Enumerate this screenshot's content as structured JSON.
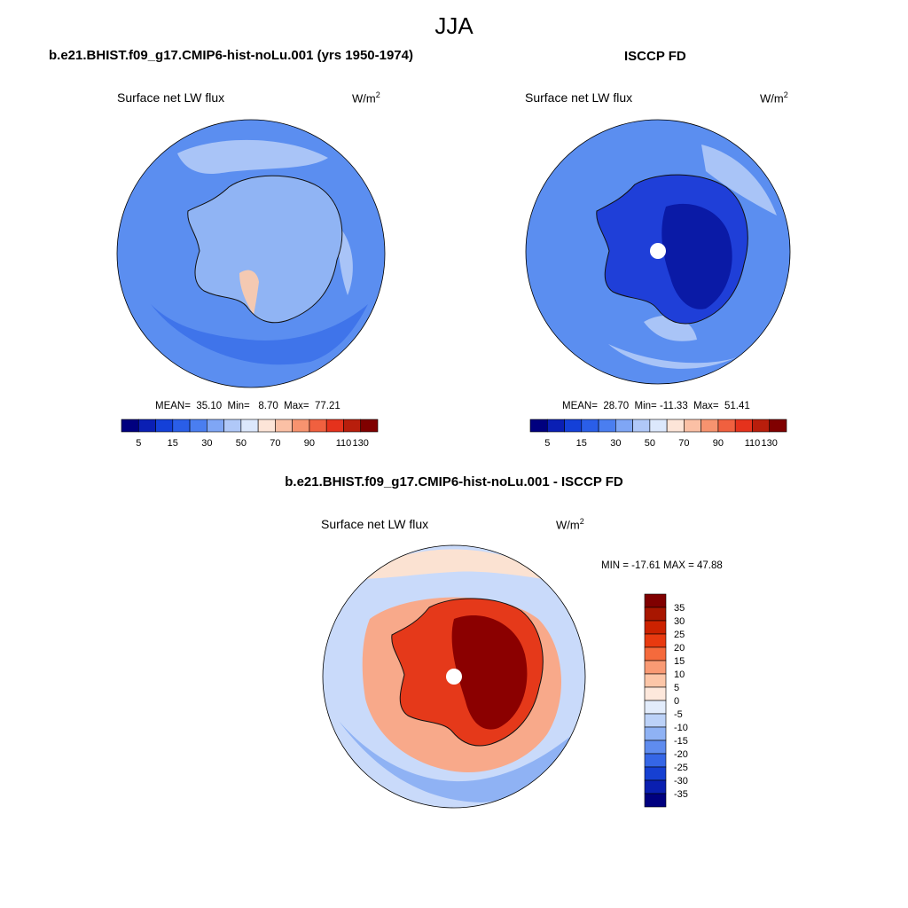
{
  "figure": {
    "season": "JJA"
  },
  "panels": [
    {
      "title": "b.e21.BHIST.f09_g17.CMIP6-hist-noLu.001 (yrs 1950-1974)",
      "variable": "Surface net LW flux",
      "units_base": "W/m",
      "units_exp": "2",
      "mean_label": "MEAN=",
      "mean": "35.10",
      "min_label": "Min=",
      "min": "8.70",
      "max_label": "Max=",
      "max": "77.21"
    },
    {
      "title": "ISCCP FD",
      "variable": "Surface net LW flux",
      "units_base": "W/m",
      "units_exp": "2",
      "mean_label": "MEAN=",
      "mean": "28.70",
      "min_label": "Min=",
      "min": "-11.33",
      "max_label": "Max=",
      "max": "51.41"
    },
    {
      "title": "b.e21.BHIST.f09_g17.CMIP6-hist-noLu.001 - ISCCP FD",
      "variable": "Surface net LW flux",
      "units_base": "W/m",
      "units_exp": "2",
      "minmax_text": "MIN = -17.61 MAX =  47.88"
    }
  ],
  "colorbar_abs": {
    "tick_labels": [
      "5",
      "15",
      "30",
      "50",
      "70",
      "90",
      "110",
      "130"
    ],
    "colors": [
      "#00007f",
      "#0a1fb4",
      "#1440d8",
      "#2a5ee8",
      "#4a7ef0",
      "#7fa6f5",
      "#b0c8f8",
      "#dce8fc",
      "#fde5d8",
      "#fbc0a5",
      "#f7936f",
      "#f0603f",
      "#e5321c",
      "#b81e0c",
      "#800000"
    ]
  },
  "colorbar_diff": {
    "tick_labels": [
      "35",
      "30",
      "25",
      "20",
      "15",
      "10",
      "5",
      "0",
      "-5",
      "-10",
      "-15",
      "-20",
      "-25",
      "-30",
      "-35"
    ],
    "colors": [
      "#800000",
      "#a81600",
      "#cc2200",
      "#e83a10",
      "#f56a3c",
      "#f99a74",
      "#fcc6a8",
      "#fde8dc",
      "#e2ecfb",
      "#bcd2f8",
      "#8fb2f4",
      "#5f8cef",
      "#3566e6",
      "#1640d2",
      "#0a1fb0",
      "#00007f"
    ]
  },
  "map_colors": {
    "ocean_abs": "#5b8ef0",
    "land_abs": "#90b4f4",
    "ocean_light": "#a9c4f7",
    "ocean_dark": "#3f74ea",
    "obs_land": "#1f3fd8",
    "obs_core": "#0a1aa6",
    "diff_ocean": "#c9dafa",
    "diff_ring": "#fbe2d2",
    "diff_land": "#e5391a",
    "diff_core": "#8b0000",
    "coast": "#111111"
  }
}
